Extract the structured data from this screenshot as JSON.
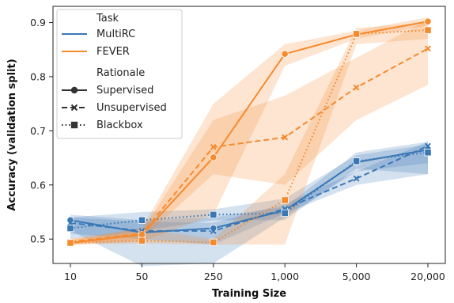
{
  "chart_data": {
    "type": "line",
    "xlabel": "Training Size",
    "ylabel": "Accuracy (validation split)",
    "x_categories": [
      "10",
      "50",
      "250",
      "1,000",
      "5,000",
      "20,000"
    ],
    "ylim": [
      0.455,
      0.93
    ],
    "y_ticks": [
      0.5,
      0.6,
      0.7,
      0.8,
      0.9
    ],
    "y_tick_labels": [
      "0.5",
      "0.6",
      "0.7",
      "0.8",
      "0.9"
    ],
    "legend": {
      "placement": "top-left",
      "task_title": "Task",
      "tasks": [
        {
          "name": "MultiRC",
          "color": "#3a78b5"
        },
        {
          "name": "FEVER",
          "color": "#f58a2e"
        }
      ],
      "rationale_title": "Rationale",
      "rationales": [
        {
          "name": "Supervised",
          "style": "solid",
          "marker": "circle"
        },
        {
          "name": "Unsupervised",
          "style": "dashed",
          "marker": "x"
        },
        {
          "name": "Blackbox",
          "style": "dotted",
          "marker": "square"
        }
      ]
    },
    "series": [
      {
        "task": "MultiRC",
        "rationale": "Supervised",
        "values": [
          0.535,
          0.512,
          0.52,
          0.553,
          0.642,
          0.665
        ],
        "band_low": [
          0.515,
          0.45,
          0.455,
          0.54,
          0.625,
          0.64
        ],
        "band_high": [
          0.545,
          0.535,
          0.54,
          0.56,
          0.66,
          0.68
        ]
      },
      {
        "task": "MultiRC",
        "rationale": "Unsupervised",
        "values": [
          0.53,
          0.515,
          0.515,
          0.556,
          0.612,
          0.672
        ],
        "band_low": [
          0.51,
          0.5,
          0.49,
          0.548,
          0.6,
          0.62
        ],
        "band_high": [
          0.54,
          0.532,
          0.53,
          0.565,
          0.625,
          0.68
        ]
      },
      {
        "task": "MultiRC",
        "rationale": "Blackbox",
        "values": [
          0.52,
          0.535,
          0.545,
          0.548,
          0.644,
          0.66
        ],
        "band_low": [
          0.5,
          0.515,
          0.535,
          0.535,
          0.63,
          0.62
        ],
        "band_high": [
          0.54,
          0.55,
          0.555,
          0.575,
          0.655,
          0.675
        ]
      },
      {
        "task": "FEVER",
        "rationale": "Supervised",
        "values": [
          0.493,
          0.508,
          0.651,
          0.842,
          0.878,
          0.902
        ],
        "band_low": [
          0.49,
          0.495,
          0.545,
          0.82,
          0.87,
          0.895
        ],
        "band_high": [
          0.5,
          0.52,
          0.75,
          0.86,
          0.885,
          0.91
        ]
      },
      {
        "task": "FEVER",
        "rationale": "Unsupervised",
        "values": [
          0.495,
          0.51,
          0.67,
          0.688,
          0.78,
          0.852
        ],
        "band_low": [
          0.49,
          0.5,
          0.62,
          0.6,
          0.72,
          0.785
        ],
        "band_high": [
          0.5,
          0.515,
          0.72,
          0.765,
          0.835,
          0.905
        ]
      },
      {
        "task": "FEVER",
        "rationale": "Blackbox",
        "values": [
          0.493,
          0.497,
          0.494,
          0.572,
          0.879,
          0.886
        ],
        "band_low": [
          0.49,
          0.492,
          0.49,
          0.49,
          0.86,
          0.87
        ],
        "band_high": [
          0.498,
          0.52,
          0.5,
          0.62,
          0.89,
          0.9
        ]
      }
    ]
  }
}
